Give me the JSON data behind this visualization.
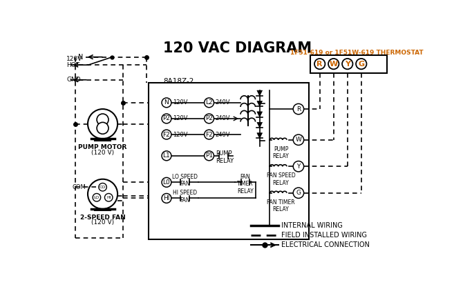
{
  "title": "120 VAC DIAGRAM",
  "title_fontsize": 15,
  "bg_color": "#ffffff",
  "line_color": "#000000",
  "orange_color": "#cc6600",
  "thermostat_label": "1F51-619 or 1F51W-619 THERMOSTAT",
  "controller_label": "8A18Z-2",
  "legend_items": [
    {
      "label": "INTERNAL WIRING"
    },
    {
      "label": "FIELD INSTALLED WIRING"
    },
    {
      "label": "ELECTRICAL CONNECTION"
    }
  ]
}
